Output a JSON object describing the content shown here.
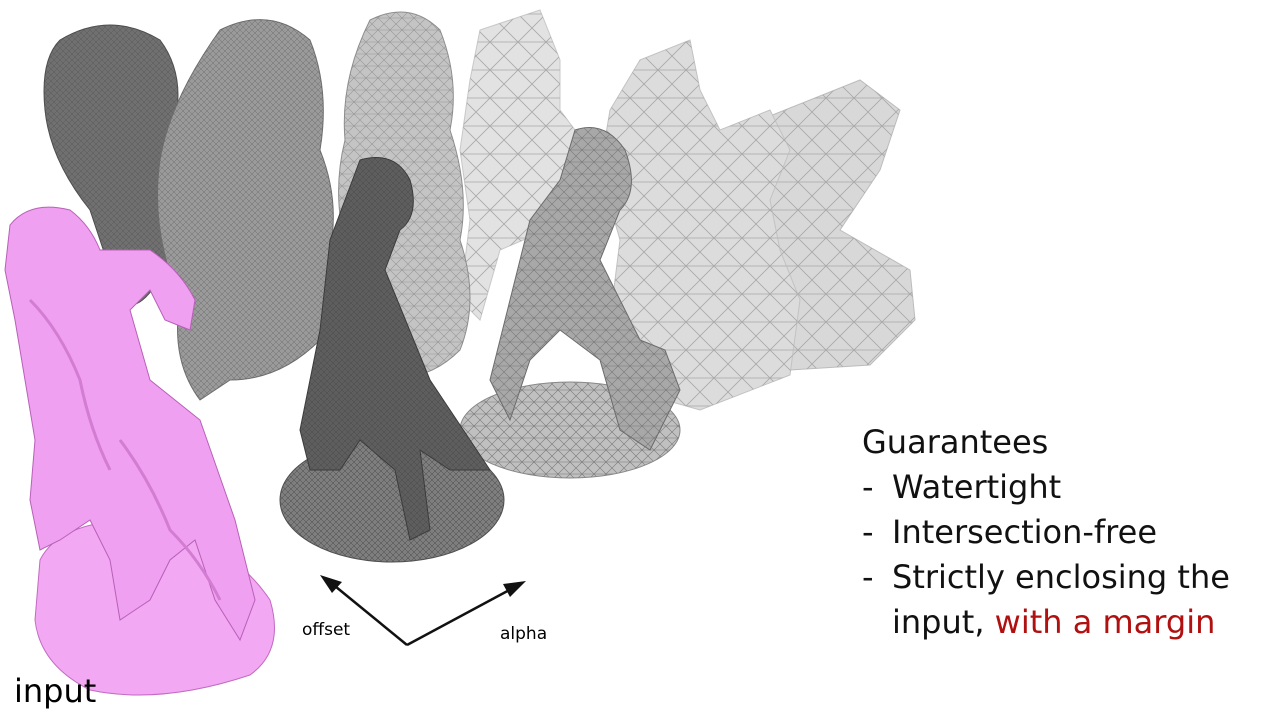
{
  "labels": {
    "input": "input",
    "offset": "offset",
    "alpha": "alpha"
  },
  "guarantees": {
    "title": "Guarantees",
    "items": [
      {
        "text": "Watertight"
      },
      {
        "text": "Intersection-free"
      },
      {
        "text": "Strictly enclosing the input, ",
        "highlight": "with a margin"
      }
    ],
    "bullet": "-"
  },
  "colors": {
    "input_mesh": "#f0a0f0",
    "input_mesh_shadow": "#c26ac2",
    "dense_mesh": "#6a6a6a",
    "medium_mesh": "#8c8c8c",
    "coarse_mesh": "#cfcfcf",
    "highlight": "#b01010"
  },
  "icons": {
    "offset_arrow": "arrow-up-left-icon",
    "alpha_arrow": "arrow-up-right-icon"
  }
}
